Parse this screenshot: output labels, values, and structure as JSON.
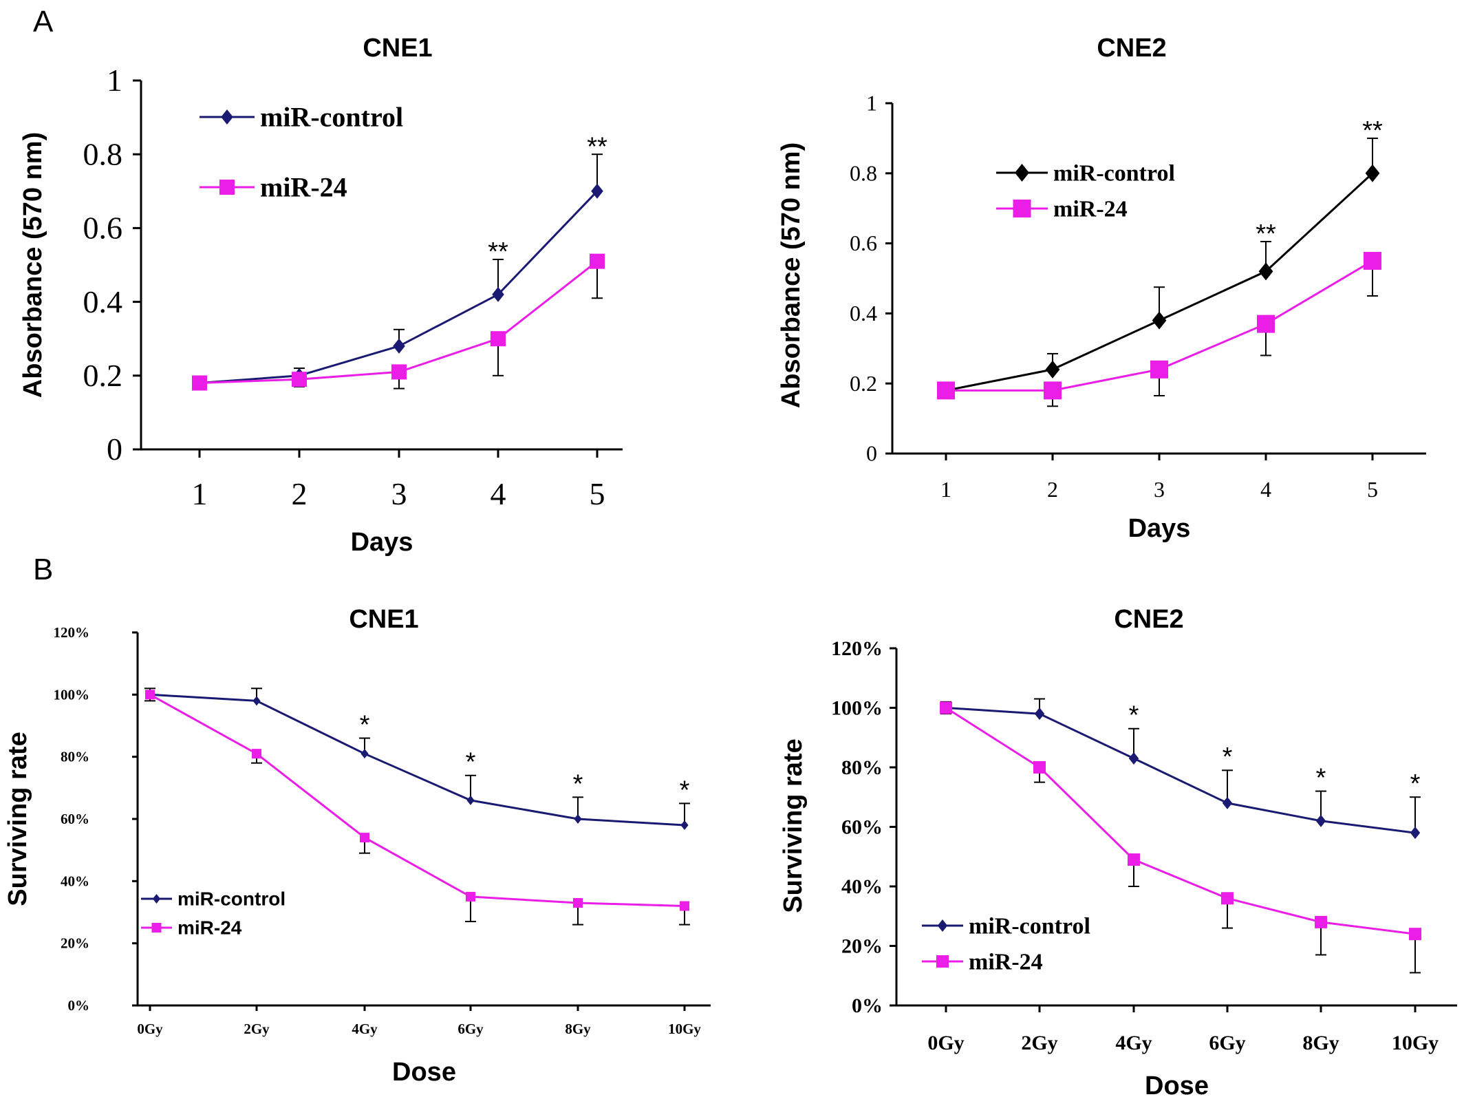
{
  "panels": {
    "a": "A",
    "b": "B"
  },
  "colors": {
    "navy": "#1a1a72",
    "magenta": "#ea1ee6",
    "black": "#000000"
  },
  "chart_data": [
    {
      "type": "line",
      "title": "CNE1",
      "xlabel": "Days",
      "ylabel": "Absorbance (570 nm)",
      "x": [
        "1",
        "2",
        "3",
        "4",
        "5"
      ],
      "yticks": [
        "0",
        "0.2",
        "0.4",
        "0.6",
        "0.8",
        "1"
      ],
      "ylim": [
        0,
        1
      ],
      "legend": "top-left",
      "series": [
        {
          "name": "miR-control",
          "color": "#1a1a72",
          "marker": "diamond",
          "values": [
            0.18,
            0.2,
            0.28,
            0.42,
            0.7
          ],
          "errors": [
            0.0,
            0.02,
            0.045,
            0.095,
            0.1
          ]
        },
        {
          "name": "miR-24",
          "color": "#ea1ee6",
          "marker": "square",
          "values": [
            0.18,
            0.19,
            0.21,
            0.3,
            0.51
          ],
          "errors": [
            0.0,
            0.02,
            0.045,
            0.1,
            0.1
          ]
        }
      ],
      "significance": [
        {
          "x": "4",
          "mark": "**"
        },
        {
          "x": "5",
          "mark": "**"
        }
      ]
    },
    {
      "type": "line",
      "title": "CNE2",
      "xlabel": "Days",
      "ylabel": "Absorbance (570 nm)",
      "x": [
        "1",
        "2",
        "3",
        "4",
        "5"
      ],
      "yticks": [
        "0",
        "0.2",
        "0.4",
        "0.6",
        "0.8",
        "1"
      ],
      "ylim": [
        0,
        1
      ],
      "legend": "top-left",
      "series": [
        {
          "name": "miR-control",
          "color": "#000000",
          "marker": "diamond",
          "values": [
            0.18,
            0.24,
            0.38,
            0.52,
            0.8
          ],
          "errors": [
            0.0,
            0.045,
            0.095,
            0.085,
            0.1
          ]
        },
        {
          "name": "miR-24",
          "color": "#ea1ee6",
          "marker": "square",
          "values": [
            0.18,
            0.18,
            0.24,
            0.37,
            0.55
          ],
          "errors": [
            0.0,
            0.045,
            0.075,
            0.09,
            0.1
          ]
        }
      ],
      "significance": [
        {
          "x": "4",
          "mark": "**"
        },
        {
          "x": "5",
          "mark": "**"
        }
      ]
    },
    {
      "type": "line",
      "title": "CNE1",
      "xlabel": "Dose",
      "ylabel": "Surviving rate",
      "x": [
        "0Gy",
        "2Gy",
        "4Gy",
        "6Gy",
        "8Gy",
        "10Gy"
      ],
      "yticks": [
        "0%",
        "20%",
        "40%",
        "60%",
        "80%",
        "100%",
        "120%"
      ],
      "ylim": [
        0,
        120
      ],
      "legend": "bottom-left",
      "series": [
        {
          "name": "miR-control",
          "color": "#1a1a72",
          "marker": "diamond",
          "values": [
            100,
            98,
            81,
            66,
            60,
            58
          ],
          "errors": [
            2,
            4,
            5,
            8,
            7,
            7
          ]
        },
        {
          "name": "miR-24",
          "color": "#ea1ee6",
          "marker": "square",
          "values": [
            100,
            81,
            54,
            35,
            33,
            32
          ],
          "errors": [
            2,
            3,
            5,
            8,
            7,
            6
          ]
        }
      ],
      "significance": [
        {
          "x": "4Gy",
          "mark": "*"
        },
        {
          "x": "6Gy",
          "mark": "*"
        },
        {
          "x": "8Gy",
          "mark": "*"
        },
        {
          "x": "10Gy",
          "mark": "*"
        }
      ]
    },
    {
      "type": "line",
      "title": "CNE2",
      "xlabel": "Dose",
      "ylabel": "Surviving rate",
      "x": [
        "0Gy",
        "2Gy",
        "4Gy",
        "6Gy",
        "8Gy",
        "10Gy"
      ],
      "yticks": [
        "0%",
        "20%",
        "40%",
        "60%",
        "80%",
        "100%",
        "120%"
      ],
      "ylim": [
        0,
        120
      ],
      "legend": "bottom-left",
      "series": [
        {
          "name": "miR-control",
          "color": "#1a1a72",
          "marker": "diamond",
          "values": [
            100,
            98,
            83,
            68,
            62,
            58
          ],
          "errors": [
            2,
            5,
            10,
            11,
            10,
            12
          ]
        },
        {
          "name": "miR-24",
          "color": "#ea1ee6",
          "marker": "square",
          "values": [
            100,
            80,
            49,
            36,
            28,
            24
          ],
          "errors": [
            2,
            5,
            9,
            10,
            11,
            13
          ]
        }
      ],
      "significance": [
        {
          "x": "4Gy",
          "mark": "*"
        },
        {
          "x": "6Gy",
          "mark": "*"
        },
        {
          "x": "8Gy",
          "mark": "*"
        },
        {
          "x": "10Gy",
          "mark": "*"
        }
      ]
    }
  ]
}
